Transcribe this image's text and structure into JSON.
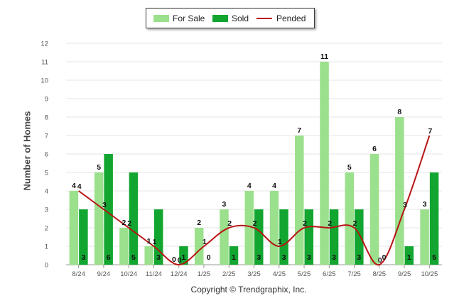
{
  "chart_data": {
    "type": "bar",
    "title": "",
    "xlabel": "",
    "ylabel": "Number of Homes",
    "ylim": [
      0,
      12
    ],
    "yticks": [
      "0",
      "1",
      "2",
      "3",
      "4",
      "5",
      "6",
      "7",
      "8",
      "9",
      "10",
      "11",
      "12"
    ],
    "categories": [
      "8/24",
      "9/24",
      "10/24",
      "11/24",
      "12/24",
      "1/25",
      "2/25",
      "3/25",
      "4/25",
      "5/25",
      "6/25",
      "7/25",
      "8/25",
      "9/25",
      "10/25"
    ],
    "series": [
      {
        "name": "For Sale",
        "kind": "bar",
        "color": "#9be08c",
        "values": [
          4,
          5,
          2,
          1,
          0,
          2,
          3,
          4,
          4,
          7,
          11,
          5,
          6,
          8,
          3
        ],
        "labels": [
          "4",
          "5",
          "2",
          "1",
          "0",
          "2",
          "3",
          "4",
          "4",
          "7",
          "11",
          "5",
          "6",
          "8",
          "3"
        ]
      },
      {
        "name": "Sold",
        "kind": "bar",
        "color": "#12a630",
        "values": [
          3,
          6,
          5,
          3,
          1,
          0,
          1,
          3,
          3,
          3,
          3,
          3,
          0,
          1,
          5
        ],
        "labels": [
          "3",
          "6",
          "5",
          "3",
          "1",
          "0",
          "1",
          "3",
          "3",
          "3",
          "3",
          "3",
          "0",
          "1",
          "5"
        ]
      },
      {
        "name": "Pended",
        "kind": "line",
        "color": "#b81414",
        "values": [
          4,
          3,
          2,
          1,
          0,
          1,
          2,
          2,
          1,
          2,
          2,
          2,
          0,
          3,
          7
        ],
        "labels": [
          "4",
          "3",
          "2",
          "1",
          "0",
          "1",
          "2",
          "2",
          "1",
          "2",
          "2",
          "2",
          "0",
          "3",
          "7"
        ]
      }
    ],
    "legend": "top-center",
    "grid": true
  },
  "footer": {
    "copyright": "Copyright © Trendgraphix, Inc."
  }
}
